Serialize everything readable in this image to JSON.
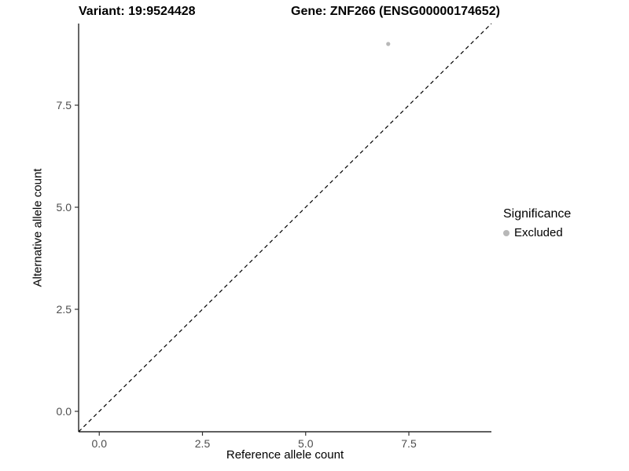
{
  "chart_data": {
    "type": "scatter",
    "title_left": "Variant: 19:9524428",
    "title_right": "Gene: ZNF266 (ENSG00000174652)",
    "xlabel": "Reference allele count",
    "ylabel": "Alternative allele count",
    "xlim": [
      -0.5,
      9.5
    ],
    "ylim": [
      -0.5,
      9.5
    ],
    "xticks": [
      0.0,
      2.5,
      5.0,
      7.5
    ],
    "xtick_labels": [
      "0.0",
      "2.5",
      "5.0",
      "7.5"
    ],
    "yticks": [
      0.0,
      2.5,
      5.0,
      7.5
    ],
    "ytick_labels": [
      "0.0",
      "2.5",
      "5.0",
      "7.5"
    ],
    "grid": false,
    "points": [
      {
        "x": 7,
        "y": 9,
        "series": "Excluded"
      }
    ],
    "identity_line": {
      "style": "dashed",
      "from": [
        -0.5,
        -0.5
      ],
      "to": [
        9.5,
        9.5
      ]
    },
    "legend": {
      "position": "right",
      "title": "Significance",
      "items": [
        {
          "label": "Excluded",
          "color": "#b8b8b8"
        }
      ]
    }
  },
  "colors": {
    "background": "#ffffff",
    "axis_line": "#000000",
    "tick_mark": "#333333",
    "axis_text": "#4d4d4d",
    "point": "#b8b8b8",
    "dashed_line": "#000000"
  }
}
